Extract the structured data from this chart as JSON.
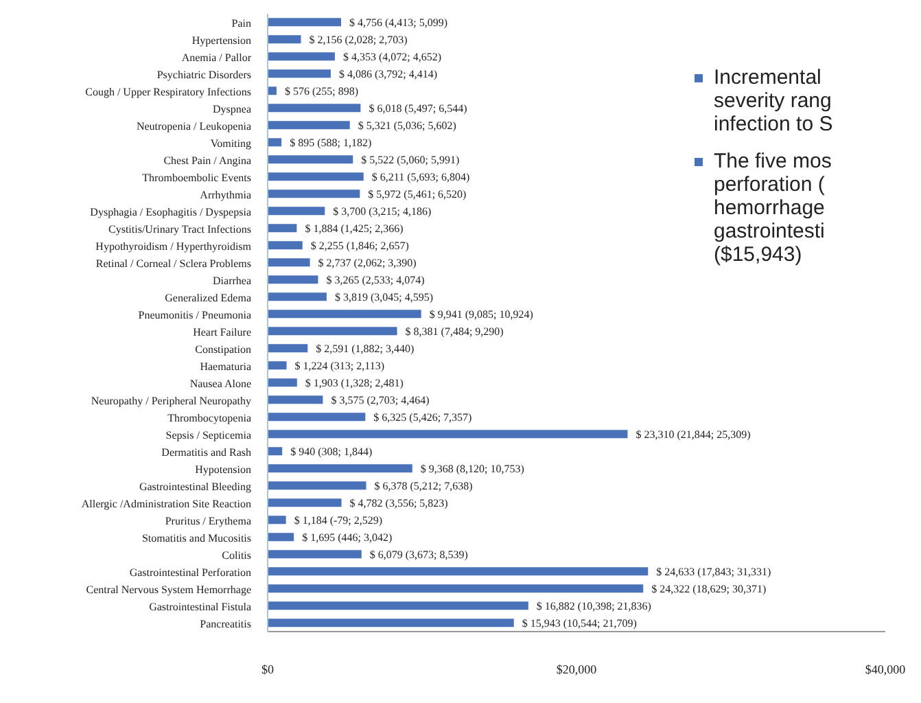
{
  "chart_data": {
    "type": "bar",
    "orientation": "horizontal",
    "categories": [
      "Pain",
      "Hypertension",
      "Anemia / Pallor",
      "Psychiatric Disorders",
      "Cough / Upper Respiratory Infections",
      "Dyspnea",
      "Neutropenia / Leukopenia",
      "Vomiting",
      "Chest Pain / Angina",
      "Thromboembolic Events",
      "Arrhythmia",
      "Dysphagia / Esophagitis / Dyspepsia",
      "Cystitis/Urinary Tract Infections",
      "Hypothyroidism / Hyperthyroidism",
      "Retinal / Corneal / Sclera Problems",
      "Diarrhea",
      "Generalized Edema",
      "Pneumonitis / Pneumonia",
      "Heart Failure",
      "Constipation",
      "Haematuria",
      "Nausea Alone",
      "Neuropathy / Peripheral Neuropathy",
      "Thrombocytopenia",
      "Sepsis / Septicemia",
      "Dermatitis and Rash",
      "Hypotension",
      "Gastrointestinal Bleeding",
      "Allergic /Administration Site Reaction",
      "Pruritus / Erythema",
      "Stomatitis and Mucositis",
      "Colitis",
      "Gastrointestinal Perforation",
      "Central Nervous System Hemorrhage",
      "Gastrointestinal Fistula",
      "Pancreatitis"
    ],
    "values": [
      4756,
      2156,
      4353,
      4086,
      576,
      6018,
      5321,
      895,
      5522,
      6211,
      5972,
      3700,
      1884,
      2255,
      2737,
      3265,
      3819,
      9941,
      8381,
      2591,
      1224,
      1903,
      3575,
      6325,
      23310,
      940,
      9368,
      6378,
      4782,
      1184,
      1695,
      6079,
      24633,
      24322,
      16882,
      15943
    ],
    "value_labels": [
      "$ 4,756 (4,413; 5,099)",
      "$ 2,156 (2,028; 2,703)",
      "$ 4,353 (4,072; 4,652)",
      "$ 4,086 (3,792; 4,414)",
      "$ 576 (255; 898)",
      "$ 6,018 (5,497; 6,544)",
      "$ 5,321 (5,036; 5,602)",
      "$ 895 (588; 1,182)",
      "$ 5,522 (5,060; 5,991)",
      "$ 6,211 (5,693; 6,804)",
      "$ 5,972 (5,461; 6,520)",
      "$ 3,700 (3,215; 4,186)",
      "$ 1,884 (1,425; 2,366)",
      "$ 2,255 (1,846; 2,657)",
      "$ 2,737 (2,062; 3,390)",
      "$ 3,265 (2,533; 4,074)",
      "$ 3,819 (3,045; 4,595)",
      "$ 9,941 (9,085; 10,924)",
      "$ 8,381 (7,484; 9,290)",
      "$ 2,591 (1,882; 3,440)",
      "$ 1,224 (313; 2,113)",
      "$ 1,903 (1,328; 2,481)",
      "$ 3,575 (2,703; 4,464)",
      "$ 6,325 (5,426; 7,357)",
      "$ 23,310 (21,844; 25,309)",
      "$ 940 (308; 1,844)",
      "$ 9,368 (8,120; 10,753)",
      "$ 6,378 (5,212; 7,638)",
      "$ 4,782 (3,556; 5,823)",
      "$ 1,184 (-79; 2,529)",
      "$ 1,695 (446; 3,042)",
      "$ 6,079 (3,673; 8,539)",
      "$ 24,633 (17,843; 31,331)",
      "$ 24,322 (18,629; 30,371)",
      "$ 16,882 (10,398; 21,836)",
      "$ 15,943 (10,544; 21,709)"
    ],
    "color": "#4a72b8",
    "xlim": [
      0,
      40000
    ],
    "xticks": [
      {
        "value": 0,
        "label": "$0"
      },
      {
        "value": 20000,
        "label": "$20,000"
      },
      {
        "value": 40000,
        "label": "$40,000"
      }
    ],
    "annotations": [
      "Incremental\nseverity rang\ninfection to S",
      "The five mos\nperforation (\nhemorrhage\ngastrointesti\n($15,943)"
    ]
  }
}
